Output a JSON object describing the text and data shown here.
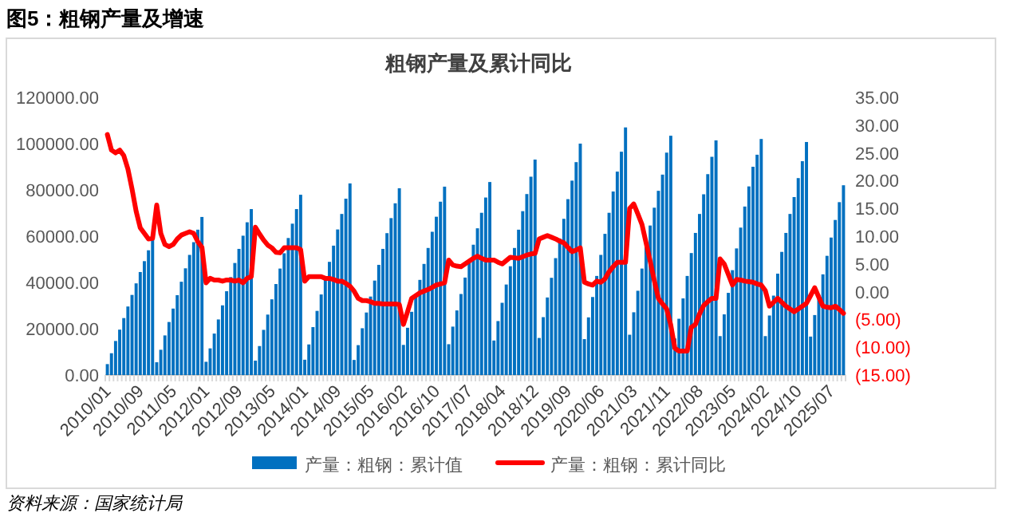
{
  "chart_data": {
    "type": "bar",
    "title": "图5：粗钢产量及增速",
    "subtitle": "粗钢产量及累计同比",
    "annotations": [
      "资料来源：国家统计局"
    ],
    "categories": [
      "2010/01",
      null,
      null,
      null,
      null,
      null,
      null,
      null,
      "2010/09",
      null,
      null,
      null,
      null,
      null,
      null,
      null,
      "2011/05",
      null,
      null,
      null,
      null,
      null,
      null,
      null,
      "2012/01",
      null,
      null,
      null,
      null,
      null,
      null,
      null,
      "2012/09",
      null,
      null,
      null,
      null,
      null,
      null,
      null,
      "2013/05",
      null,
      null,
      null,
      null,
      null,
      null,
      null,
      "2014/01",
      null,
      null,
      null,
      null,
      null,
      null,
      null,
      "2014/09",
      null,
      null,
      null,
      null,
      null,
      null,
      null,
      "2015/05",
      null,
      null,
      null,
      null,
      null,
      null,
      null,
      "2016/02",
      null,
      null,
      null,
      null,
      null,
      null,
      null,
      "2016/10",
      null,
      null,
      null,
      null,
      null,
      null,
      null,
      "2017/07",
      null,
      null,
      null,
      null,
      null,
      null,
      null,
      "2018/04",
      null,
      null,
      null,
      null,
      null,
      null,
      null,
      "2018/12",
      null,
      null,
      null,
      null,
      null,
      null,
      null,
      "2019/09",
      null,
      null,
      null,
      null,
      null,
      null,
      null,
      "2020/06",
      null,
      null,
      null,
      null,
      null,
      null,
      null,
      "2021/03",
      null,
      null,
      null,
      null,
      null,
      null,
      null,
      "2021/11",
      null,
      null,
      null,
      null,
      null,
      null,
      null,
      "2022/08",
      null,
      null,
      null,
      null,
      null,
      null,
      null,
      "2023/05",
      null,
      null,
      null,
      null,
      null,
      null,
      null,
      "2024/02",
      null,
      null,
      null,
      null,
      null,
      null,
      null,
      "2024/10",
      null,
      null,
      null,
      null,
      null,
      null,
      null,
      "2025/07",
      null,
      null,
      null
    ],
    "series": [
      {
        "name": "产量：粗钢：累计值",
        "color": "#0070c0",
        "values": [
          4700,
          9400,
          14700,
          19600,
          24600,
          29600,
          34600,
          39600,
          44500,
          49200,
          53900,
          58600,
          5500,
          10900,
          17100,
          22900,
          28700,
          34500,
          40300,
          46100,
          51900,
          57400,
          62800,
          68300,
          5700,
          11500,
          17900,
          24000,
          30100,
          36200,
          42300,
          48400,
          54500,
          60200,
          66000,
          71700,
          6200,
          12500,
          19500,
          26100,
          32700,
          39300,
          46000,
          52600,
          59200,
          65400,
          71700,
          77900,
          6600,
          13200,
          20700,
          27700,
          34800,
          41800,
          48900,
          55900,
          62900,
          69600,
          76200,
          82800,
          6500,
          12900,
          20200,
          27000,
          33900,
          40800,
          47600,
          54500,
          61300,
          67800,
          74200,
          80700,
          13000,
          20400,
          27300,
          34200,
          41100,
          48000,
          54900,
          61900,
          68400,
          74900,
          81400,
          13300,
          20900,
          27900,
          35000,
          42100,
          49200,
          56300,
          63400,
          70100,
          76700,
          83400,
          14900,
          23300,
          31200,
          39100,
          47000,
          54900,
          62800,
          70800,
          78200,
          85700,
          93100,
          16000,
          25000,
          33500,
          42000,
          50500,
          59000,
          67500,
          76000,
          84000,
          92000,
          100000,
          15500,
          24900,
          33700,
          42800,
          51900,
          61000,
          70100,
          79300,
          87900,
          96500,
          107000,
          17400,
          27100,
          36400,
          46000,
          56300,
          64600,
          72300,
          79600,
          86600,
          96100,
          103400,
          15800,
          24300,
          33100,
          42800,
          52700,
          61400,
          69600,
          78100,
          86800,
          94300,
          101400,
          16800,
          26200,
          35500,
          45300,
          54700,
          63700,
          72800,
          81500,
          90000,
          95200,
          102000,
          16800,
          25700,
          34300,
          43800,
          53200,
          61400,
          69600,
          76900,
          85100,
          92400,
          100700,
          16600,
          25900,
          34600,
          43500,
          51500,
          59400,
          67000,
          74700,
          82000
        ]
      },
      {
        "name": "产量：粗钢：累计同比",
        "type": "line",
        "axis": "y2",
        "color": "#ff0000",
        "values": [
          28.3,
          25.5,
          25.0,
          25.5,
          24.5,
          22.1,
          18.5,
          14.5,
          11.5,
          10.5,
          9.5,
          9.6,
          15.6,
          10.5,
          8.5,
          8.1,
          8.5,
          9.5,
          10.2,
          10.5,
          10.8,
          10.5,
          9.0,
          8.0,
          1.6,
          2.4,
          2.1,
          2.1,
          1.9,
          2.1,
          2.1,
          1.9,
          2.1,
          1.6,
          2.4,
          2.7,
          11.6,
          10.4,
          9.3,
          8.4,
          7.9,
          7.1,
          7.0,
          7.9,
          7.9,
          7.9,
          7.9,
          7.6,
          1.9,
          2.7,
          2.7,
          2.7,
          2.7,
          2.4,
          2.4,
          2.2,
          1.9,
          1.9,
          1.5,
          1.0,
          0.1,
          -1.2,
          -1.6,
          -1.6,
          -1.8,
          -2.1,
          -2.1,
          -2.2,
          -2.2,
          -2.2,
          -2.2,
          -2.3,
          -5.9,
          -3.6,
          -1.2,
          -0.7,
          -0.2,
          0.1,
          0.4,
          0.8,
          1.2,
          1.4,
          1.6,
          5.7,
          4.8,
          4.6,
          4.5,
          5.0,
          5.5,
          6.0,
          6.4,
          6.0,
          5.7,
          5.7,
          5.7,
          5.3,
          5.0,
          5.6,
          6.2,
          6.1,
          6.0,
          6.3,
          6.6,
          6.8,
          6.9,
          9.5,
          9.8,
          10.1,
          9.8,
          9.5,
          9.1,
          8.8,
          8.0,
          7.2,
          7.5,
          7.9,
          1.7,
          1.4,
          1.2,
          1.9,
          1.7,
          2.3,
          3.6,
          4.5,
          5.3,
          5.3,
          5.3,
          15.0,
          15.8,
          14.0,
          12.1,
          8.8,
          5.5,
          2.0,
          -1.2,
          -2.2,
          -3.1,
          -6.0,
          -10.2,
          -10.7,
          -10.7,
          -10.7,
          -6.4,
          -5.9,
          -4.0,
          -2.5,
          -1.8,
          -1.2,
          -1.2,
          5.9,
          5.0,
          3.1,
          1.2,
          2.2,
          2.1,
          1.9,
          1.8,
          1.7,
          1.4,
          1.2,
          0.2,
          -2.6,
          -1.9,
          -1.2,
          -1.9,
          -2.6,
          -3.1,
          -3.6,
          -3.1,
          -2.6,
          -2.1,
          -0.7,
          0.7,
          -1.0,
          -2.6,
          -2.8,
          -2.9,
          -2.6,
          -3.2,
          -3.9
        ]
      }
    ],
    "ylim": [
      0,
      120000
    ],
    "yticks": [
      {
        "value": 0,
        "label": "0.00"
      },
      {
        "value": 20000,
        "label": "20000.00"
      },
      {
        "value": 40000,
        "label": "40000.00"
      },
      {
        "value": 60000,
        "label": "60000.00"
      },
      {
        "value": 80000,
        "label": "80000.00"
      },
      {
        "value": 100000,
        "label": "100000.00"
      },
      {
        "value": 120000,
        "label": "120000.00"
      }
    ],
    "y2lim": [
      -15,
      35
    ],
    "y2ticks": [
      {
        "value": -15,
        "label": "(15.00)"
      },
      {
        "value": -10,
        "label": "(10.00)"
      },
      {
        "value": -5,
        "label": "(5.00)"
      },
      {
        "value": 0,
        "label": "0.00"
      },
      {
        "value": 5,
        "label": "5.00"
      },
      {
        "value": 10,
        "label": "10.00"
      },
      {
        "value": 15,
        "label": "15.00"
      },
      {
        "value": 20,
        "label": "20.00"
      },
      {
        "value": 25,
        "label": "25.00"
      },
      {
        "value": 30,
        "label": "30.00"
      },
      {
        "value": 35,
        "label": "35.00"
      }
    ],
    "legend": "bottom",
    "line_style": "solid"
  }
}
